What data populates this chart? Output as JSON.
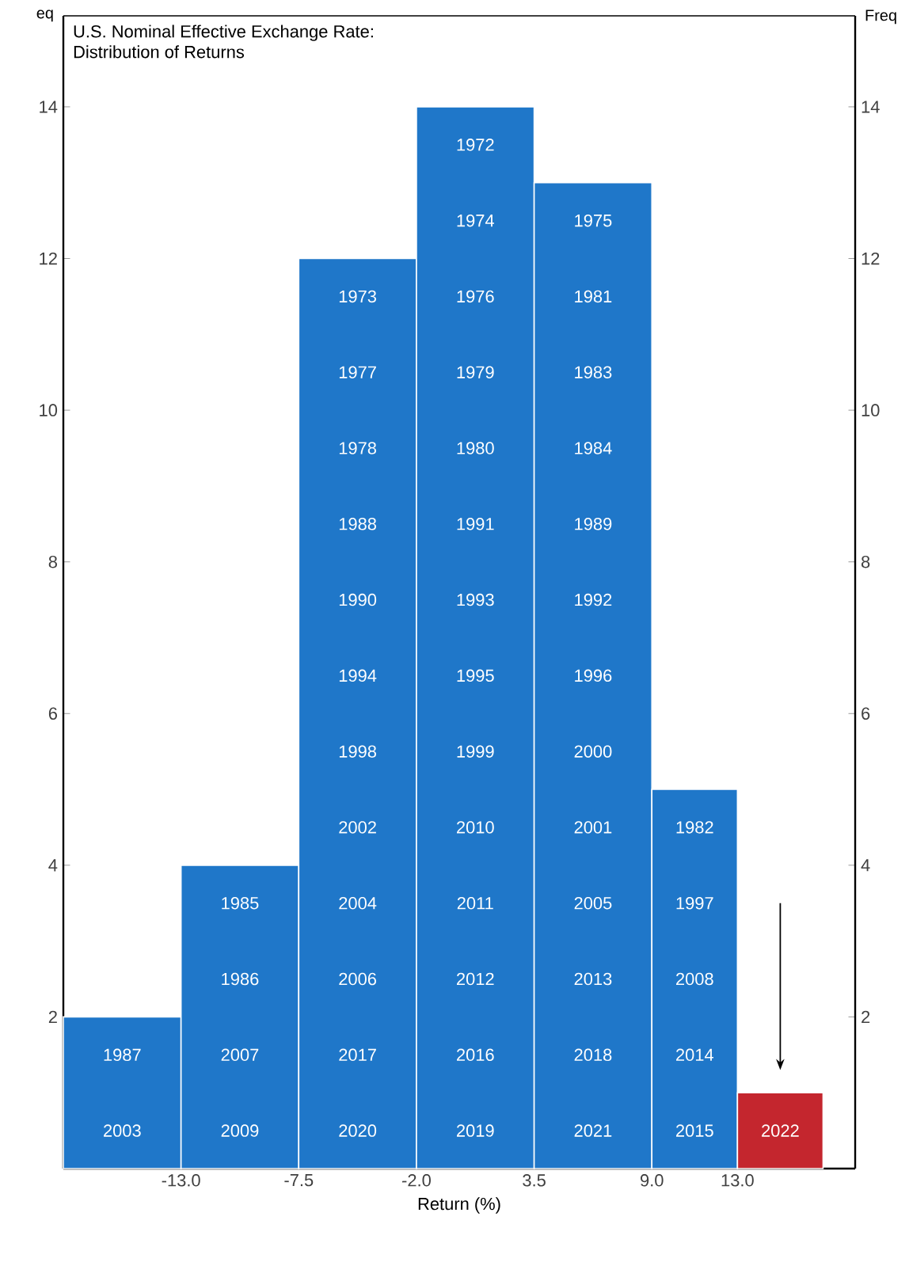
{
  "chart_data": {
    "type": "histogram",
    "title": "U.S. Nominal Effective Exchange Rate:",
    "subtitle": "Distribution of Returns",
    "xlabel": "Return (%)",
    "ylabel": "eq",
    "y2label": "Freq",
    "bins": [
      -18.5,
      -13,
      -7.5,
      -2,
      3.5,
      9,
      13,
      17
    ],
    "values": [
      2,
      4,
      12,
      14,
      13,
      5,
      1
    ],
    "colors": [
      "#1f77c9",
      "#1f77c9",
      "#1f77c9",
      "#1f77c9",
      "#1f77c9",
      "#1f77c9",
      "#c4262e"
    ],
    "xlim": [
      -18.5,
      18.5
    ],
    "xticks": [
      {
        "value": -13,
        "label": "-13.0"
      },
      {
        "value": -7.5,
        "label": "-7.5"
      },
      {
        "value": -2,
        "label": "-2.0"
      },
      {
        "value": 3.5,
        "label": "3.5"
      },
      {
        "value": 9,
        "label": "9.0"
      },
      {
        "value": 13,
        "label": "13.0"
      }
    ],
    "ylim": [
      0,
      15.2
    ],
    "yticks": [
      2,
      4,
      6,
      8,
      10,
      12,
      14
    ],
    "y2lim": [
      0,
      15.2
    ],
    "y2ticks": [
      2,
      4,
      6,
      8,
      10,
      12,
      14
    ],
    "annotations": [
      "2003",
      "1987",
      "2009",
      "2007",
      "1986",
      "1985",
      "2020",
      "2017",
      "2006",
      "2004",
      "2002",
      "1998",
      "1994",
      "1990",
      "1988",
      "1978",
      "1977",
      "1973",
      "2019",
      "2016",
      "2012",
      "2011",
      "2010",
      "1999",
      "1995",
      "1993",
      "1991",
      "1980",
      "1979",
      "1976",
      "1974",
      "1972",
      "2021",
      "2018",
      "2013",
      "2005",
      "2001",
      "2000",
      "1996",
      "1992",
      "1989",
      "1984",
      "1983",
      "1981",
      "1975",
      "2015",
      "2014",
      "2008",
      "1997",
      "1982",
      "2022"
    ]
  }
}
